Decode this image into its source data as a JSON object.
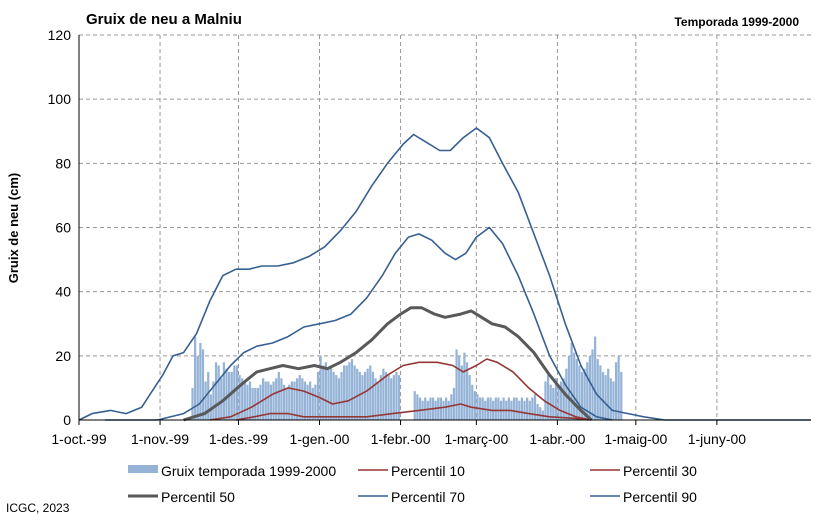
{
  "chart_data": {
    "type": "bar+line",
    "title": "Gruix de neu a Malniu",
    "subtitle": "Temporada 1999-2000",
    "ylabel": "Gruix de neu (cm)",
    "xlabel": "",
    "ylim": [
      0,
      120
    ],
    "yticks": [
      0,
      20,
      40,
      60,
      80,
      100,
      120
    ],
    "xlim_days": [
      0,
      280
    ],
    "x_tick_labels": [
      "1-oct.-99",
      "1-nov.-99",
      "1-des.-99",
      "1-gen.-00",
      "1-febr.-00",
      "1-març-00",
      "1-abr.-00",
      "1-maig-00",
      "1-juny-00"
    ],
    "x_tick_days": [
      0,
      31,
      61,
      92,
      123,
      152,
      183,
      213,
      244
    ],
    "grid": true,
    "legend_position": "bottom",
    "source": "ICGC, 2023",
    "colors": {
      "bars": "#95B3D7",
      "p10": "#953735",
      "p30": "#953735",
      "p50": "#595959",
      "p70": "#366092",
      "p90": "#366092",
      "grid": "#999999"
    },
    "bars": {
      "name": "Gruix temporada 1999-2000",
      "segments": [
        {
          "start": 43,
          "values": [
            10,
            26,
            20,
            24,
            22,
            12,
            15,
            8,
            12,
            18,
            17,
            13,
            18,
            16,
            15,
            15,
            17,
            17,
            14,
            13,
            12,
            11,
            12,
            10,
            10,
            10,
            11,
            13,
            12,
            12,
            11,
            12,
            13,
            15,
            13,
            11,
            10,
            11,
            12,
            12,
            13,
            14,
            13,
            12,
            11,
            12,
            10,
            11,
            15,
            20,
            17,
            18,
            16,
            17,
            15,
            14,
            13,
            15,
            17,
            17,
            18,
            19,
            17,
            16,
            15,
            14,
            15,
            16,
            17,
            15,
            13,
            12,
            14,
            16,
            15,
            14,
            13,
            14,
            15,
            14
          ]
        },
        {
          "start": 128,
          "values": [
            9,
            8,
            7,
            6,
            7,
            6,
            7,
            7,
            6,
            7,
            7,
            6,
            7,
            6,
            8,
            10,
            22,
            20,
            17,
            21,
            18,
            14,
            11,
            9,
            8,
            7,
            7,
            6,
            7,
            7,
            6,
            7,
            7,
            6,
            7,
            6,
            7,
            6,
            7,
            7,
            6,
            7,
            6,
            7,
            6,
            7,
            8,
            5,
            4,
            3,
            12,
            14,
            11,
            10,
            13,
            11,
            12,
            13,
            16,
            20,
            24,
            21,
            19,
            17,
            15,
            16,
            18,
            20,
            22,
            26,
            19,
            17,
            15,
            14,
            16,
            13,
            12,
            18,
            20,
            15
          ]
        }
      ]
    },
    "series": [
      {
        "name": "Percentil 10",
        "points": [
          [
            60,
            0
          ],
          [
            67,
            1
          ],
          [
            73,
            2
          ],
          [
            80,
            2
          ],
          [
            86,
            1
          ],
          [
            92,
            1
          ],
          [
            100,
            1
          ],
          [
            110,
            1
          ],
          [
            120,
            2
          ],
          [
            130,
            3
          ],
          [
            140,
            4
          ],
          [
            146,
            5
          ],
          [
            150,
            4
          ],
          [
            158,
            3
          ],
          [
            165,
            3
          ],
          [
            172,
            2
          ],
          [
            180,
            1
          ],
          [
            190,
            0.5
          ],
          [
            195,
            0
          ]
        ]
      },
      {
        "name": "Percentil 30",
        "points": [
          [
            50,
            0
          ],
          [
            58,
            1
          ],
          [
            66,
            4
          ],
          [
            74,
            8
          ],
          [
            80,
            10
          ],
          [
            86,
            9
          ],
          [
            92,
            7
          ],
          [
            97,
            5
          ],
          [
            103,
            6
          ],
          [
            110,
            9
          ],
          [
            118,
            14
          ],
          [
            124,
            17
          ],
          [
            130,
            18
          ],
          [
            137,
            18
          ],
          [
            143,
            17
          ],
          [
            147,
            15
          ],
          [
            152,
            17
          ],
          [
            156,
            19
          ],
          [
            160,
            18
          ],
          [
            166,
            15
          ],
          [
            172,
            10
          ],
          [
            178,
            6
          ],
          [
            184,
            3
          ],
          [
            190,
            1
          ],
          [
            196,
            0
          ]
        ]
      },
      {
        "name": "Percentil 50",
        "points": [
          [
            40,
            0
          ],
          [
            48,
            2
          ],
          [
            55,
            6
          ],
          [
            62,
            11
          ],
          [
            68,
            15
          ],
          [
            73,
            16
          ],
          [
            78,
            17
          ],
          [
            84,
            16
          ],
          [
            90,
            17
          ],
          [
            95,
            16
          ],
          [
            100,
            18
          ],
          [
            106,
            21
          ],
          [
            112,
            25
          ],
          [
            118,
            30
          ],
          [
            123,
            33
          ],
          [
            127,
            35
          ],
          [
            131,
            35
          ],
          [
            136,
            33
          ],
          [
            140,
            32
          ],
          [
            146,
            33
          ],
          [
            150,
            34
          ],
          [
            154,
            32
          ],
          [
            158,
            30
          ],
          [
            163,
            29
          ],
          [
            168,
            26
          ],
          [
            174,
            21
          ],
          [
            180,
            14
          ],
          [
            186,
            8
          ],
          [
            192,
            3
          ],
          [
            196,
            0
          ]
        ]
      },
      {
        "name": "Percentil 70",
        "points": [
          [
            10,
            0
          ],
          [
            20,
            0
          ],
          [
            30,
            0
          ],
          [
            40,
            2
          ],
          [
            46,
            5
          ],
          [
            52,
            11
          ],
          [
            58,
            17
          ],
          [
            63,
            21
          ],
          [
            68,
            23
          ],
          [
            74,
            24
          ],
          [
            80,
            26
          ],
          [
            86,
            29
          ],
          [
            92,
            30
          ],
          [
            98,
            31
          ],
          [
            104,
            33
          ],
          [
            110,
            38
          ],
          [
            116,
            45
          ],
          [
            121,
            52
          ],
          [
            126,
            57
          ],
          [
            130,
            58
          ],
          [
            135,
            56
          ],
          [
            140,
            52
          ],
          [
            144,
            50
          ],
          [
            148,
            52
          ],
          [
            152,
            57
          ],
          [
            157,
            60
          ],
          [
            162,
            55
          ],
          [
            168,
            45
          ],
          [
            174,
            33
          ],
          [
            180,
            20
          ],
          [
            186,
            11
          ],
          [
            192,
            4
          ],
          [
            198,
            1
          ],
          [
            204,
            0
          ]
        ]
      },
      {
        "name": "Percentil 90",
        "points": [
          [
            0,
            0
          ],
          [
            5,
            2
          ],
          [
            12,
            3
          ],
          [
            18,
            2
          ],
          [
            24,
            4
          ],
          [
            28,
            9
          ],
          [
            32,
            14
          ],
          [
            36,
            20
          ],
          [
            40,
            21
          ],
          [
            45,
            27
          ],
          [
            50,
            37
          ],
          [
            55,
            45
          ],
          [
            60,
            47
          ],
          [
            65,
            47
          ],
          [
            70,
            48
          ],
          [
            76,
            48
          ],
          [
            82,
            49
          ],
          [
            88,
            51
          ],
          [
            94,
            54
          ],
          [
            100,
            59
          ],
          [
            106,
            65
          ],
          [
            112,
            73
          ],
          [
            118,
            80
          ],
          [
            124,
            86
          ],
          [
            128,
            89
          ],
          [
            132,
            87
          ],
          [
            138,
            84
          ],
          [
            142,
            84
          ],
          [
            147,
            88
          ],
          [
            152,
            91
          ],
          [
            157,
            88
          ],
          [
            162,
            80
          ],
          [
            168,
            71
          ],
          [
            174,
            58
          ],
          [
            180,
            45
          ],
          [
            186,
            30
          ],
          [
            192,
            17
          ],
          [
            198,
            8
          ],
          [
            204,
            3
          ],
          [
            210,
            2
          ],
          [
            216,
            1
          ],
          [
            224,
            0
          ],
          [
            235,
            0
          ],
          [
            245,
            0
          ],
          [
            256,
            0
          ],
          [
            268,
            0
          ],
          [
            280,
            0
          ]
        ]
      }
    ]
  }
}
